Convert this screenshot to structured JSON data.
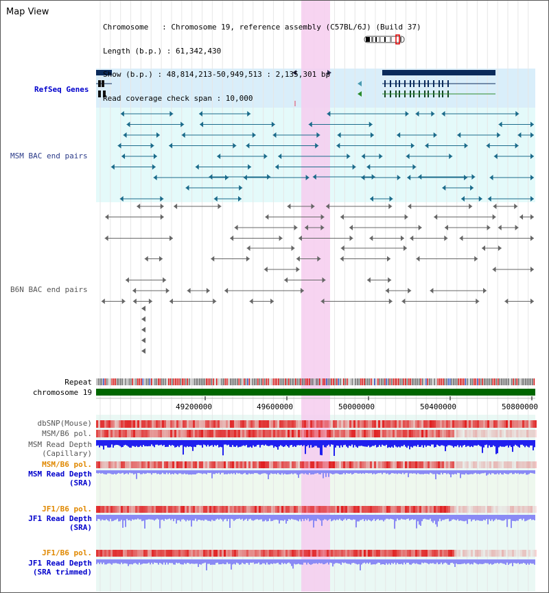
{
  "header": {
    "view_title": "Map View",
    "info_lines": [
      "Chromosome   : Chromosome 19, reference assembly (C57BL/6J) (Build 37)",
      "Length (b.p.) : 61,342,430",
      "Show (b.p.) : 48,814,213-50,949,513 : 2,135,301 bp",
      "Read coverage check span : 10,000"
    ]
  },
  "track_labels": {
    "refseq": "RefSeq Genes",
    "msm_bac": "MSM BAC end pairs",
    "b6n_bac": "B6N BAC end pairs",
    "repeat": "Repeat",
    "chromosome": "chromosome 19",
    "dbsnp": "dbSNP(Mouse)",
    "msm_pol1": "MSM/B6 pol.",
    "msm_depth_cap_1": "MSM Read Depth",
    "msm_depth_cap_2": "(Capillary)",
    "msm_pol2": "MSM/B6 pol.",
    "msm_depth_sra_1": "MSM Read Depth",
    "msm_depth_sra_2": "(SRA)",
    "jf1_pol1": "JF1/B6 pol.",
    "jf1_depth_sra_1": "JF1 Read Depth",
    "jf1_depth_sra_2": "(SRA)",
    "jf1_pol2": "JF1/B6 pol.",
    "jf1_depth_trim_1": "JF1 Read Depth",
    "jf1_depth_trim_2": "(SRA trimmed)"
  },
  "axis": {
    "ticks": [
      "49200000",
      "49600000",
      "50000000",
      "50400000",
      "50800000"
    ]
  },
  "colors": {
    "highlight": "#f6cdef",
    "refseq_bg": "#d9eefa",
    "msm_bg": "#e4fafa",
    "sra_bg": "#eef8ee",
    "jf1_bg": "#e4fafa",
    "gene": "#0a2a5a",
    "msm_pair": "#1a6a8a",
    "b6n_pair": "#666666",
    "chromosome_bar": "#006600",
    "depth": "#2020ee",
    "depth_light": "#8a8af5",
    "pol_red": "#e02020"
  }
}
